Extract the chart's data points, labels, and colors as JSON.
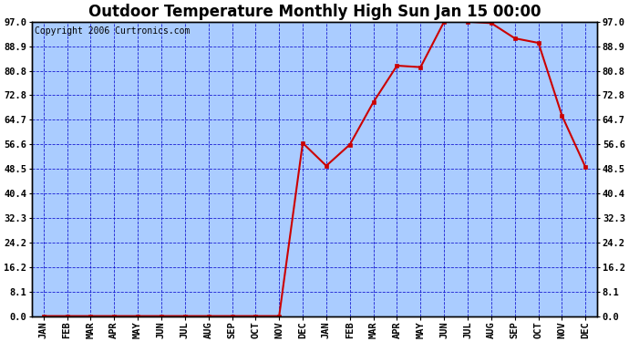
{
  "title": "Outdoor Temperature Monthly High Sun Jan 15 00:00",
  "copyright": "Copyright 2006 Curtronics.com",
  "x_labels": [
    "JAN",
    "FEB",
    "MAR",
    "APR",
    "MAY",
    "JUN",
    "JUL",
    "AUG",
    "SEP",
    "OCT",
    "NOV",
    "DEC",
    "JAN",
    "FEB",
    "MAR",
    "APR",
    "MAY",
    "JUN",
    "JUL",
    "AUG",
    "SEP",
    "OCT",
    "NOV",
    "DEC"
  ],
  "y_values": [
    0.0,
    0.0,
    0.0,
    0.0,
    0.0,
    0.0,
    0.0,
    0.0,
    0.0,
    0.0,
    0.0,
    57.0,
    49.5,
    56.5,
    70.5,
    82.5,
    82.0,
    97.0,
    97.0,
    96.5,
    91.5,
    90.0,
    66.0,
    49.0
  ],
  "ylim": [
    0.0,
    97.0
  ],
  "yticks": [
    0.0,
    8.1,
    16.2,
    24.2,
    32.3,
    40.4,
    48.5,
    56.6,
    64.7,
    72.8,
    80.8,
    88.9,
    97.0
  ],
  "line_color": "#cc0000",
  "marker_color": "#cc0000",
  "bg_color": "#aaccff",
  "grid_color": "#0000cc",
  "border_color": "#000000",
  "title_fontsize": 12,
  "axis_label_fontsize": 7.5,
  "copyright_fontsize": 7,
  "fig_width": 6.9,
  "fig_height": 3.75,
  "dpi": 100
}
